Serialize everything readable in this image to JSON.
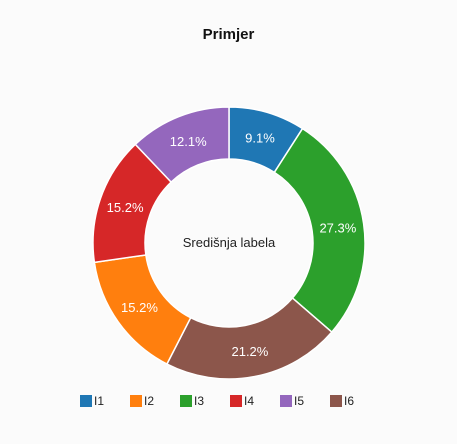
{
  "chart_data": {
    "type": "pie",
    "variant": "donut",
    "title": "Primjer",
    "center_label": "Središnja labela",
    "categories": [
      "I1",
      "I2",
      "I3",
      "I4",
      "I5",
      "I6"
    ],
    "values": [
      9.1,
      15.2,
      27.3,
      15.2,
      12.1,
      21.2
    ],
    "slice_order": [
      "I1",
      "I3",
      "I6",
      "I2",
      "I4",
      "I5"
    ],
    "data_labels": [
      "9.1%",
      "15.2%",
      "27.3%",
      "15.2%",
      "12.1%",
      "21.2%"
    ],
    "colors": [
      "#1f77b4",
      "#ff7f0e",
      "#2ca02c",
      "#d62728",
      "#9467bd",
      "#8c564b"
    ],
    "legend_position": "bottom"
  }
}
